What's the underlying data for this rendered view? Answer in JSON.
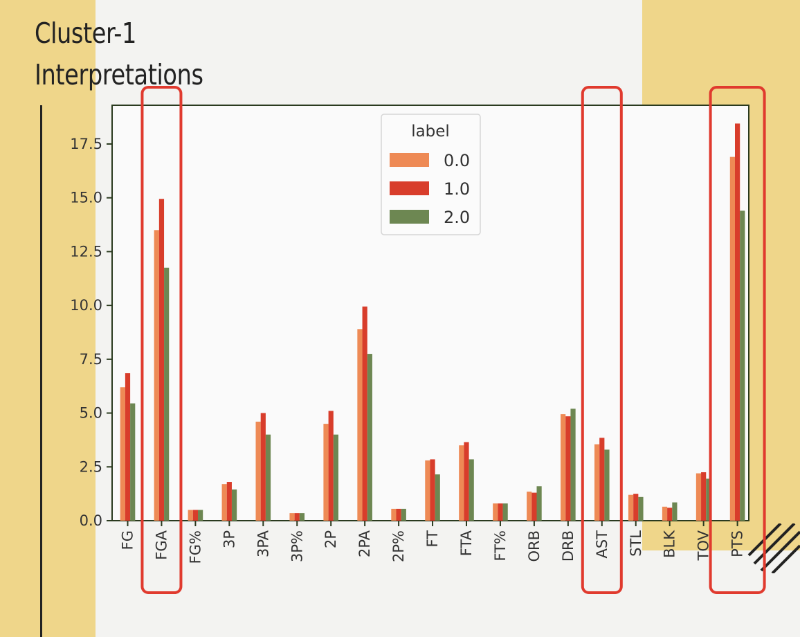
{
  "slide": {
    "title_line1": "Cluster-1",
    "title_line2": "Interpretations"
  },
  "chart_data": {
    "type": "bar",
    "categories": [
      "FG",
      "FGA",
      "FG%",
      "3P",
      "3PA",
      "3P%",
      "2P",
      "2PA",
      "2P%",
      "FT",
      "FTA",
      "FT%",
      "ORB",
      "DRB",
      "AST",
      "STL",
      "BLK",
      "TOV",
      "PTS"
    ],
    "series": [
      {
        "name": "0.0",
        "color": "#ee8a55",
        "values": [
          6.2,
          13.5,
          0.5,
          1.7,
          4.6,
          0.35,
          4.5,
          8.9,
          0.55,
          2.8,
          3.5,
          0.8,
          1.35,
          4.95,
          3.55,
          1.2,
          0.65,
          2.2,
          16.9
        ]
      },
      {
        "name": "1.0",
        "color": "#d83d2b",
        "values": [
          6.85,
          14.95,
          0.5,
          1.8,
          5.0,
          0.35,
          5.1,
          9.95,
          0.55,
          2.85,
          3.65,
          0.8,
          1.3,
          4.85,
          3.85,
          1.25,
          0.6,
          2.25,
          18.45
        ]
      },
      {
        "name": "2.0",
        "color": "#6d8752",
        "values": [
          5.45,
          11.75,
          0.5,
          1.45,
          4.0,
          0.35,
          4.0,
          7.75,
          0.55,
          2.15,
          2.85,
          0.8,
          1.6,
          5.2,
          3.3,
          1.1,
          0.85,
          1.95,
          14.4
        ]
      }
    ],
    "yticks": [
      "0.0",
      "2.5",
      "5.0",
      "7.5",
      "10.0",
      "12.5",
      "15.0",
      "17.5"
    ],
    "ytick_values": [
      0,
      2.5,
      5,
      7.5,
      10,
      12.5,
      15,
      17.5
    ],
    "ylim": [
      0,
      19.3
    ],
    "legend": {
      "title": "label",
      "position": "top-center"
    },
    "highlighted_categories": [
      "FGA",
      "AST",
      "PTS"
    ],
    "highlight_color": "#e03a2e",
    "xlabel": "",
    "ylabel": ""
  }
}
